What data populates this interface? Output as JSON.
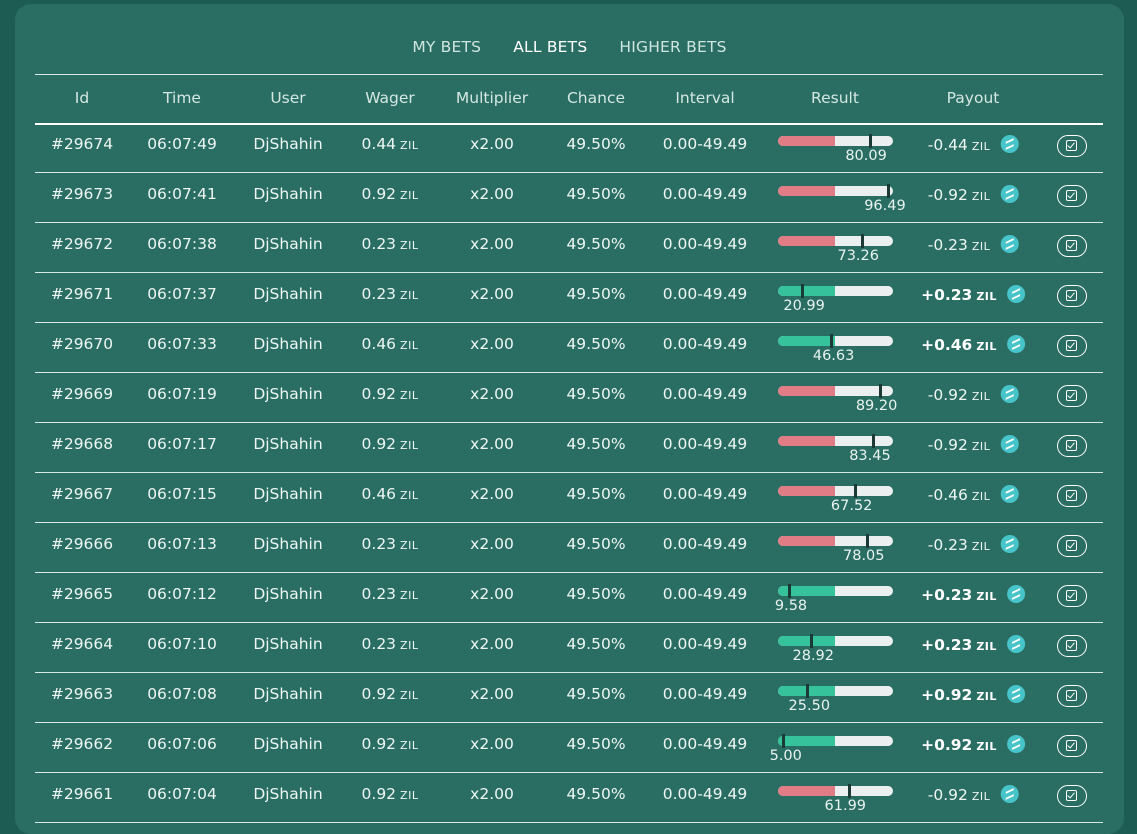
{
  "tabs": [
    {
      "label": "MY BETS",
      "active": false
    },
    {
      "label": "ALL BETS",
      "active": true
    },
    {
      "label": "HIGHER BETS",
      "active": false
    }
  ],
  "columns": [
    "Id",
    "Time",
    "User",
    "Wager",
    "Multiplier",
    "Chance",
    "Interval",
    "Result",
    "Payout"
  ],
  "currency": "ZIL",
  "colors": {
    "win": "#36c29a",
    "lose": "#e07c86",
    "coin": "#47c4c9"
  },
  "rows": [
    {
      "id": "#29674",
      "time": "06:07:49",
      "user": "DjShahin",
      "wager": "0.44",
      "multiplier": "x2.00",
      "chance": "49.50%",
      "interval": "0.00-49.49",
      "result": "80.09",
      "result_value": 80.09,
      "win": false,
      "payout": "-0.44"
    },
    {
      "id": "#29673",
      "time": "06:07:41",
      "user": "DjShahin",
      "wager": "0.92",
      "multiplier": "x2.00",
      "chance": "49.50%",
      "interval": "0.00-49.49",
      "result": "96.49",
      "result_value": 96.49,
      "win": false,
      "payout": "-0.92"
    },
    {
      "id": "#29672",
      "time": "06:07:38",
      "user": "DjShahin",
      "wager": "0.23",
      "multiplier": "x2.00",
      "chance": "49.50%",
      "interval": "0.00-49.49",
      "result": "73.26",
      "result_value": 73.26,
      "win": false,
      "payout": "-0.23"
    },
    {
      "id": "#29671",
      "time": "06:07:37",
      "user": "DjShahin",
      "wager": "0.23",
      "multiplier": "x2.00",
      "chance": "49.50%",
      "interval": "0.00-49.49",
      "result": "20.99",
      "result_value": 20.99,
      "win": true,
      "payout": "+0.23"
    },
    {
      "id": "#29670",
      "time": "06:07:33",
      "user": "DjShahin",
      "wager": "0.46",
      "multiplier": "x2.00",
      "chance": "49.50%",
      "interval": "0.00-49.49",
      "result": "46.63",
      "result_value": 46.63,
      "win": true,
      "payout": "+0.46"
    },
    {
      "id": "#29669",
      "time": "06:07:19",
      "user": "DjShahin",
      "wager": "0.92",
      "multiplier": "x2.00",
      "chance": "49.50%",
      "interval": "0.00-49.49",
      "result": "89.20",
      "result_value": 89.2,
      "win": false,
      "payout": "-0.92"
    },
    {
      "id": "#29668",
      "time": "06:07:17",
      "user": "DjShahin",
      "wager": "0.92",
      "multiplier": "x2.00",
      "chance": "49.50%",
      "interval": "0.00-49.49",
      "result": "83.45",
      "result_value": 83.45,
      "win": false,
      "payout": "-0.92"
    },
    {
      "id": "#29667",
      "time": "06:07:15",
      "user": "DjShahin",
      "wager": "0.46",
      "multiplier": "x2.00",
      "chance": "49.50%",
      "interval": "0.00-49.49",
      "result": "67.52",
      "result_value": 67.52,
      "win": false,
      "payout": "-0.46"
    },
    {
      "id": "#29666",
      "time": "06:07:13",
      "user": "DjShahin",
      "wager": "0.23",
      "multiplier": "x2.00",
      "chance": "49.50%",
      "interval": "0.00-49.49",
      "result": "78.05",
      "result_value": 78.05,
      "win": false,
      "payout": "-0.23"
    },
    {
      "id": "#29665",
      "time": "06:07:12",
      "user": "DjShahin",
      "wager": "0.23",
      "multiplier": "x2.00",
      "chance": "49.50%",
      "interval": "0.00-49.49",
      "result": "9.58",
      "result_value": 9.58,
      "win": true,
      "payout": "+0.23"
    },
    {
      "id": "#29664",
      "time": "06:07:10",
      "user": "DjShahin",
      "wager": "0.23",
      "multiplier": "x2.00",
      "chance": "49.50%",
      "interval": "0.00-49.49",
      "result": "28.92",
      "result_value": 28.92,
      "win": true,
      "payout": "+0.23"
    },
    {
      "id": "#29663",
      "time": "06:07:08",
      "user": "DjShahin",
      "wager": "0.92",
      "multiplier": "x2.00",
      "chance": "49.50%",
      "interval": "0.00-49.49",
      "result": "25.50",
      "result_value": 25.5,
      "win": true,
      "payout": "+0.92"
    },
    {
      "id": "#29662",
      "time": "06:07:06",
      "user": "DjShahin",
      "wager": "0.92",
      "multiplier": "x2.00",
      "chance": "49.50%",
      "interval": "0.00-49.49",
      "result": "5.00",
      "result_value": 5.0,
      "win": true,
      "payout": "+0.92"
    },
    {
      "id": "#29661",
      "time": "06:07:04",
      "user": "DjShahin",
      "wager": "0.92",
      "multiplier": "x2.00",
      "chance": "49.50%",
      "interval": "0.00-49.49",
      "result": "61.99",
      "result_value": 61.99,
      "win": false,
      "payout": "-0.92"
    }
  ]
}
